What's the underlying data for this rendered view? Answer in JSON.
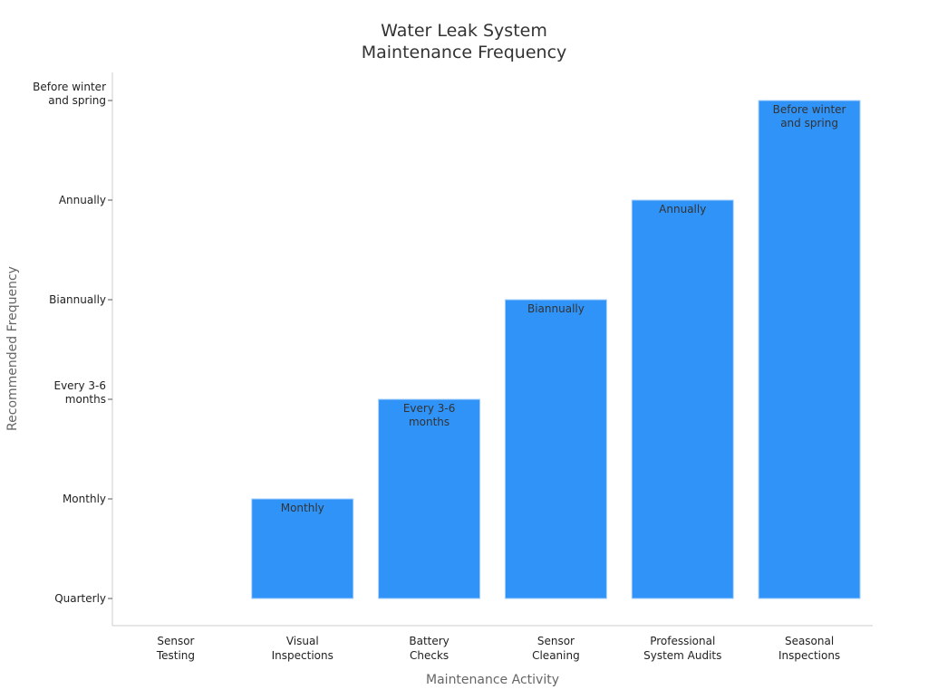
{
  "chart_data": {
    "type": "bar",
    "title_lines": [
      "Water Leak System",
      "Maintenance Frequency"
    ],
    "xlabel": "Maintenance Activity",
    "ylabel": "Recommended Frequency",
    "categories": [
      [
        "Sensor",
        "Testing"
      ],
      [
        "Visual",
        "Inspections"
      ],
      [
        "Battery",
        "Checks"
      ],
      [
        "Sensor",
        "Cleaning"
      ],
      [
        "Professional",
        "System Audits"
      ],
      [
        "Seasonal",
        "Inspections"
      ]
    ],
    "y_levels": [
      [
        "Quarterly"
      ],
      [
        "Monthly"
      ],
      [
        "Every 3-6",
        "months"
      ],
      [
        "Biannually"
      ],
      [
        "Annually"
      ],
      [
        "Before winter",
        "and spring"
      ]
    ],
    "values": [
      0,
      1,
      2,
      3,
      4,
      5
    ],
    "data_labels": [
      [],
      [
        "Monthly"
      ],
      [
        "Every 3-6",
        "months"
      ],
      [
        "Biannually"
      ],
      [
        "Annually"
      ],
      [
        "Before winter",
        "and spring"
      ]
    ],
    "ylim": [
      0,
      5
    ],
    "grid": false,
    "bar_color": "#3093f8"
  }
}
